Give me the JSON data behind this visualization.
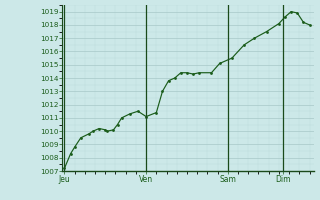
{
  "bg_color": "#cce8e8",
  "plot_bg_color": "#cce8e8",
  "line_color": "#1a5c1a",
  "marker_color": "#1a5c1a",
  "grid_major_color": "#a8c8c8",
  "grid_minor_color": "#bcdada",
  "vline_color": "#1a4a1a",
  "spine_color": "#1a4a1a",
  "tick_color": "#1a5c1a",
  "label_color": "#1a5c1a",
  "ylim": [
    1007,
    1019.5
  ],
  "yticks": [
    1007,
    1008,
    1009,
    1010,
    1011,
    1012,
    1013,
    1014,
    1015,
    1016,
    1017,
    1018,
    1019
  ],
  "day_labels": [
    "Jeu",
    "Ven",
    "Sam",
    "Dim"
  ],
  "x_values": [
    0,
    3,
    5,
    8,
    12,
    14,
    17,
    20,
    21,
    24,
    26,
    28,
    32,
    36,
    40,
    45,
    48,
    51,
    54,
    57,
    60,
    63,
    66,
    72,
    76,
    82,
    88,
    93,
    99,
    105,
    108,
    111,
    114,
    117,
    120
  ],
  "y_values": [
    1007.2,
    1008.3,
    1008.8,
    1009.5,
    1009.8,
    1010.0,
    1010.2,
    1010.1,
    1010.0,
    1010.1,
    1010.5,
    1011.0,
    1011.3,
    1011.5,
    1011.1,
    1011.4,
    1013.0,
    1013.8,
    1014.0,
    1014.4,
    1014.4,
    1014.3,
    1014.4,
    1014.4,
    1015.1,
    1015.5,
    1016.5,
    1017.0,
    1017.5,
    1018.1,
    1018.6,
    1019.0,
    1018.9,
    1018.2,
    1018.0
  ],
  "xlim": [
    -1,
    122
  ]
}
